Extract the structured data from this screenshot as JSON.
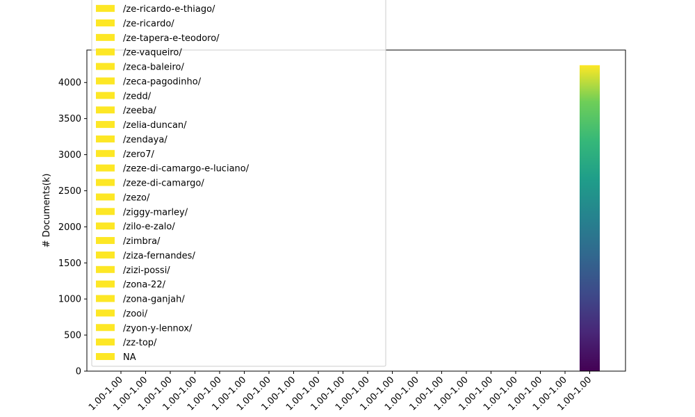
{
  "chart_data": {
    "type": "bar",
    "ylabel": "# Documents(k)",
    "xlabel": "",
    "title": "",
    "ylim": [
      0,
      4450
    ],
    "yticks": [
      0,
      500,
      1000,
      1500,
      2000,
      2500,
      3000,
      3500,
      4000
    ],
    "categories": [
      "1.00-1.00",
      "1.00-1.00",
      "1.00-1.00",
      "1.00-1.00",
      "1.00-1.00",
      "1.00-1.00",
      "1.00-1.00",
      "1.00-1.00",
      "1.00-1.00",
      "1.00-1.00",
      "1.00-1.00",
      "1.00-1.00",
      "1.00-1.00",
      "1.00-1.00",
      "1.00-1.00",
      "1.00-1.00",
      "1.00-1.00",
      "1.00-1.00",
      "1.00-1.00",
      "1.00-1.00"
    ],
    "values": [
      0,
      0,
      0,
      0,
      0,
      0,
      0,
      0,
      0,
      0,
      0,
      0,
      0,
      0,
      0,
      0,
      0,
      0,
      0,
      4240
    ],
    "bar_colormap": "viridis",
    "legend_position": "upper-left",
    "legend_color": "#fde725",
    "legend": [
      "/ze-ricardo-e-thiago/",
      "/ze-ricardo/",
      "/ze-tapera-e-teodoro/",
      "/ze-vaqueiro/",
      "/zeca-baleiro/",
      "/zeca-pagodinho/",
      "/zedd/",
      "/zeeba/",
      "/zelia-duncan/",
      "/zendaya/",
      "/zero7/",
      "/zeze-di-camargo-e-luciano/",
      "/zeze-di-camargo/",
      "/zezo/",
      "/ziggy-marley/",
      "/zilo-e-zalo/",
      "/zimbra/",
      "/ziza-fernandes/",
      "/zizi-possi/",
      "/zona-22/",
      "/zona-ganjah/",
      "/zooi/",
      "/zyon-y-lennox/",
      "/zz-top/",
      "NA"
    ]
  }
}
